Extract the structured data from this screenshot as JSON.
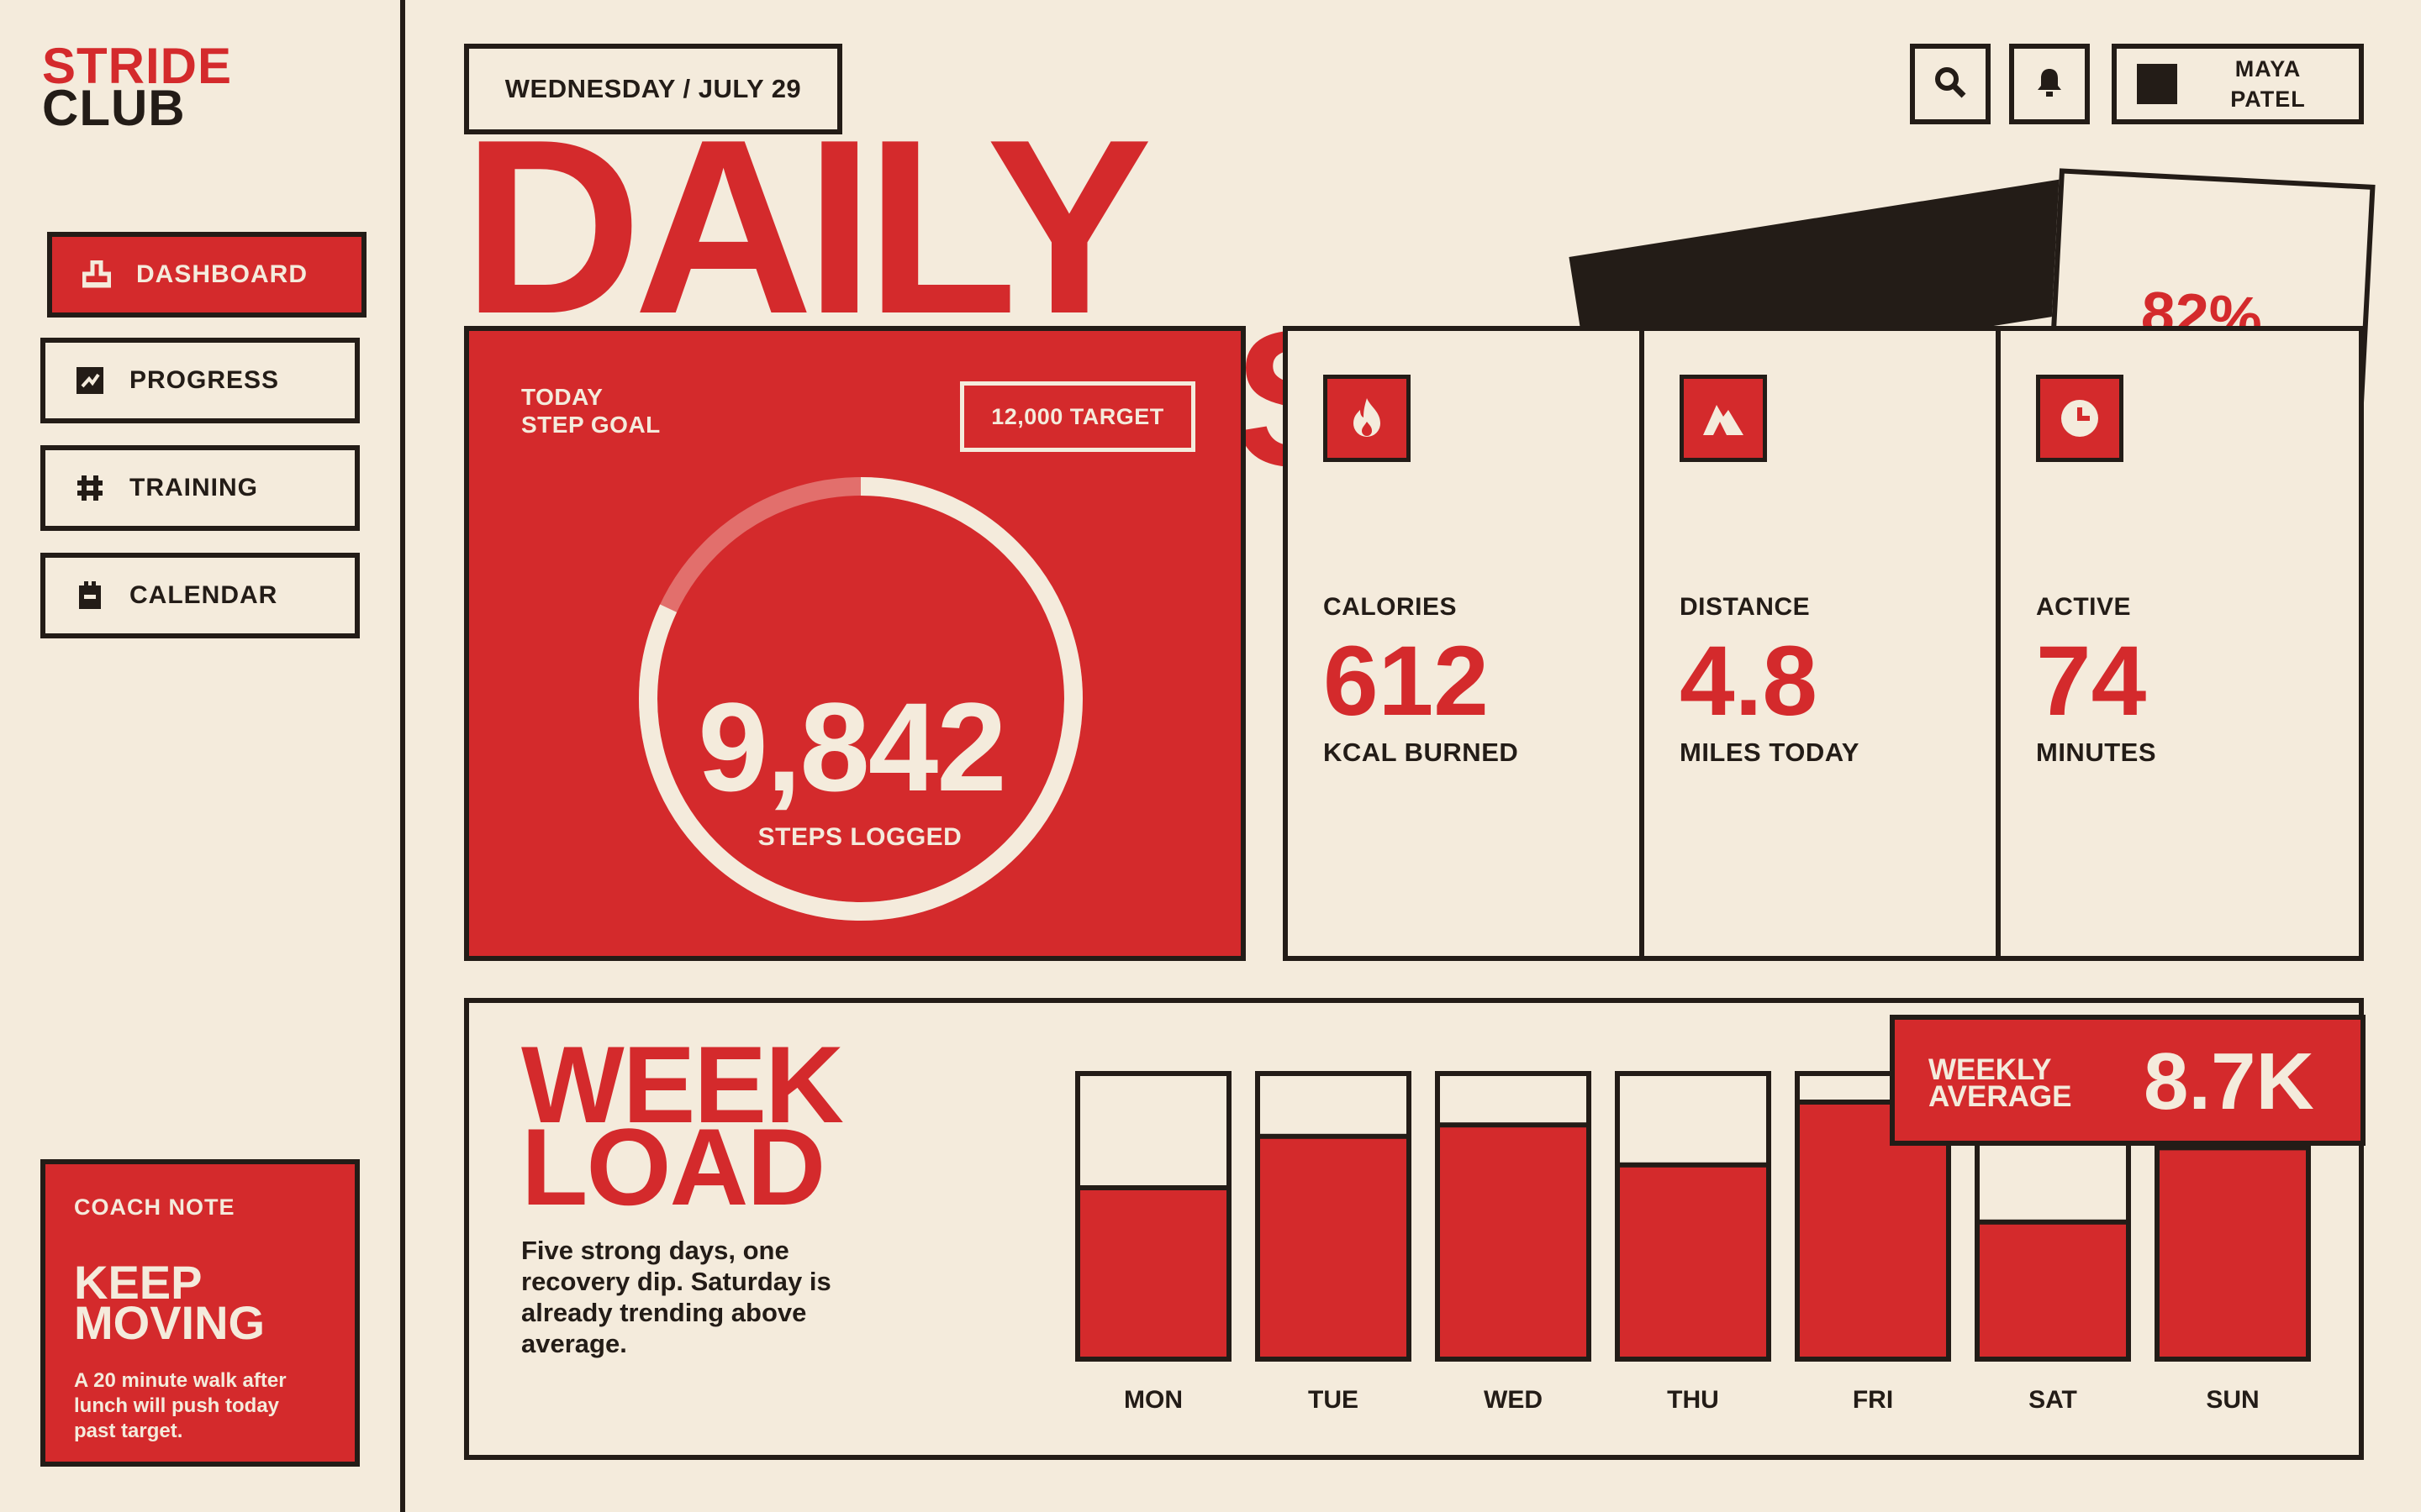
{
  "app": {
    "logo_line1": "STRIDE",
    "logo_line2": "CLUB"
  },
  "nav": [
    {
      "label": "DASHBOARD",
      "icon": "home-icon",
      "active": true
    },
    {
      "label": "PROGRESS",
      "icon": "chart-icon",
      "active": false
    },
    {
      "label": "TRAINING",
      "icon": "grid-icon",
      "active": false
    },
    {
      "label": "CALENDAR",
      "icon": "calendar-icon",
      "active": false
    }
  ],
  "coach": {
    "kicker": "COACH NOTE",
    "headline_1": "KEEP",
    "headline_2": "MOVING",
    "body": "A 20 minute walk after lunch will push today past target."
  },
  "header": {
    "date": "WEDNESDAY / JULY 29",
    "user_first": "MAYA",
    "user_last": "PATEL",
    "hero_title": "DAILY",
    "hero_partial": "S"
  },
  "tilt_card": {
    "percent": "82%"
  },
  "steps": {
    "label_1": "TODAY",
    "label_2": "STEP GOAL",
    "target": "12,000 TARGET",
    "value": "9,842",
    "caption": "STEPS LOGGED",
    "progress": 0.82
  },
  "metrics": [
    {
      "title": "CALORIES",
      "value": "612",
      "unit": "KCAL BURNED",
      "icon": "flame-icon"
    },
    {
      "title": "DISTANCE",
      "value": "4.8",
      "unit": "MILES TODAY",
      "icon": "mountain-icon"
    },
    {
      "title": "ACTIVE",
      "value": "74",
      "unit": "MINUTES",
      "icon": "clock-icon"
    }
  ],
  "week": {
    "title_1": "WEEK",
    "title_2": "LOAD",
    "description": "Five strong days, one recovery dip. Saturday is already trending above average.",
    "avg_label_1": "WEEKLY",
    "avg_label_2": "AVERAGE",
    "avg_value": "8.7K",
    "days": [
      "MON",
      "TUE",
      "WED",
      "THU",
      "FRI",
      "SAT",
      "SUN"
    ],
    "fill": [
      0.6,
      0.78,
      0.82,
      0.68,
      0.9,
      0.48,
      0.74
    ]
  },
  "colors": {
    "accent": "#d42a2c",
    "ink": "#231c17",
    "paper": "#f4ebdc"
  }
}
